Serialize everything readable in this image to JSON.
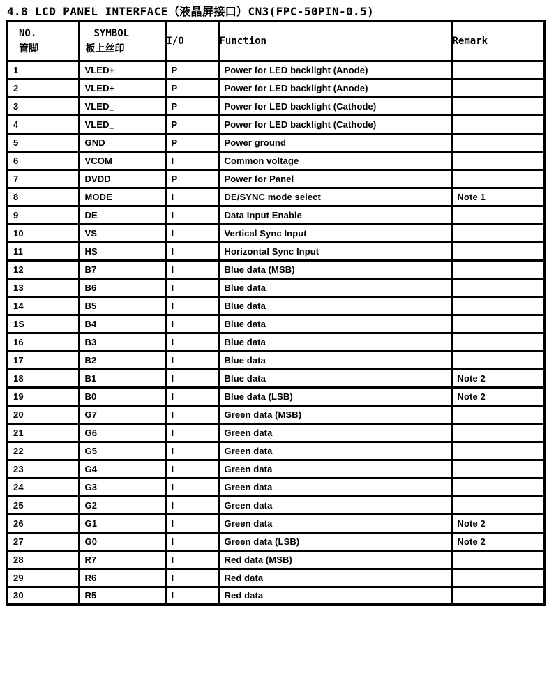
{
  "title": "4.8 LCD PANEL INTERFACE（液晶屏接口）CN3(FPC-50PIN-0.5)",
  "table": {
    "headers": {
      "no_line1": "NO.",
      "no_line2": "管脚",
      "symbol_line1": "SYMBOL",
      "symbol_line2": "板上丝印",
      "io": "I/O",
      "function": "Function",
      "remark": "Remark"
    },
    "rows": [
      {
        "no": "1",
        "symbol": "VLED+",
        "io": "P",
        "function": "Power for LED backlight (Anode)",
        "remark": ""
      },
      {
        "no": "2",
        "symbol": "VLED+",
        "io": "P",
        "function": "Power for LED backlight (Anode)",
        "remark": ""
      },
      {
        "no": "3",
        "symbol": "VLED_",
        "io": "P",
        "function": "Power for LED backlight (Cathode)",
        "remark": ""
      },
      {
        "no": "4",
        "symbol": "VLED_",
        "io": "P",
        "function": "Power for LED backlight (Cathode)",
        "remark": ""
      },
      {
        "no": "5",
        "symbol": "GND",
        "io": "P",
        "function": "Power ground",
        "remark": ""
      },
      {
        "no": "6",
        "symbol": "VCOM",
        "io": "I",
        "function": "Common voltage",
        "remark": ""
      },
      {
        "no": "7",
        "symbol": "DVDD",
        "io": "P",
        "function": "Power for Panel",
        "remark": ""
      },
      {
        "no": "8",
        "symbol": "MODE",
        "io": "I",
        "function": "DE/SYNC mode select",
        "remark": "Note 1"
      },
      {
        "no": "9",
        "symbol": "DE",
        "io": "I",
        "function": "Data Input Enable",
        "remark": ""
      },
      {
        "no": "10",
        "symbol": "VS",
        "io": "I",
        "function": "Vertical Sync Input",
        "remark": ""
      },
      {
        "no": "11",
        "symbol": "HS",
        "io": "I",
        "function": "Horizontal Sync Input",
        "remark": ""
      },
      {
        "no": "12",
        "symbol": "B7",
        "io": "I",
        "function": "Blue data (MSB)",
        "remark": ""
      },
      {
        "no": "13",
        "symbol": "B6",
        "io": "I",
        "function": "Blue data",
        "remark": ""
      },
      {
        "no": "14",
        "symbol": "B5",
        "io": "I",
        "function": "Blue data",
        "remark": ""
      },
      {
        "no": "1S",
        "symbol": "B4",
        "io": "I",
        "function": "Blue data",
        "remark": ""
      },
      {
        "no": "16",
        "symbol": "B3",
        "io": "I",
        "function": "Blue data",
        "remark": ""
      },
      {
        "no": "17",
        "symbol": "B2",
        "io": "I",
        "function": "Blue data",
        "remark": ""
      },
      {
        "no": "18",
        "symbol": "B1",
        "io": "I",
        "function": "Blue data",
        "remark": "Note 2"
      },
      {
        "no": "19",
        "symbol": "B0",
        "io": "I",
        "function": "Blue data (LSB)",
        "remark": "Note 2"
      },
      {
        "no": "20",
        "symbol": "G7",
        "io": "I",
        "function": "Green data (MSB)",
        "remark": ""
      },
      {
        "no": "21",
        "symbol": "G6",
        "io": "I",
        "function": "Green data",
        "remark": ""
      },
      {
        "no": "22",
        "symbol": "G5",
        "io": "I",
        "function": "Green data",
        "remark": ""
      },
      {
        "no": "23",
        "symbol": "G4",
        "io": "I",
        "function": "Green data",
        "remark": ""
      },
      {
        "no": "24",
        "symbol": "G3",
        "io": "I",
        "function": "Green data",
        "remark": ""
      },
      {
        "no": "25",
        "symbol": "G2",
        "io": "I",
        "function": "Green data",
        "remark": ""
      },
      {
        "no": "26",
        "symbol": "G1",
        "io": "I",
        "function": "Green data",
        "remark": "Note 2"
      },
      {
        "no": "27",
        "symbol": "G0",
        "io": "I",
        "function": "Green data (LSB)",
        "remark": "Note 2"
      },
      {
        "no": "28",
        "symbol": "R7",
        "io": "I",
        "function": "Red data (MSB)",
        "remark": ""
      },
      {
        "no": "29",
        "symbol": "R6",
        "io": "I",
        "function": "Red data",
        "remark": ""
      },
      {
        "no": "30",
        "symbol": "R5",
        "io": "I",
        "function": "Red data",
        "remark": ""
      }
    ]
  },
  "colors": {
    "text": "#000000",
    "background": "#ffffff",
    "border": "#000000"
  }
}
